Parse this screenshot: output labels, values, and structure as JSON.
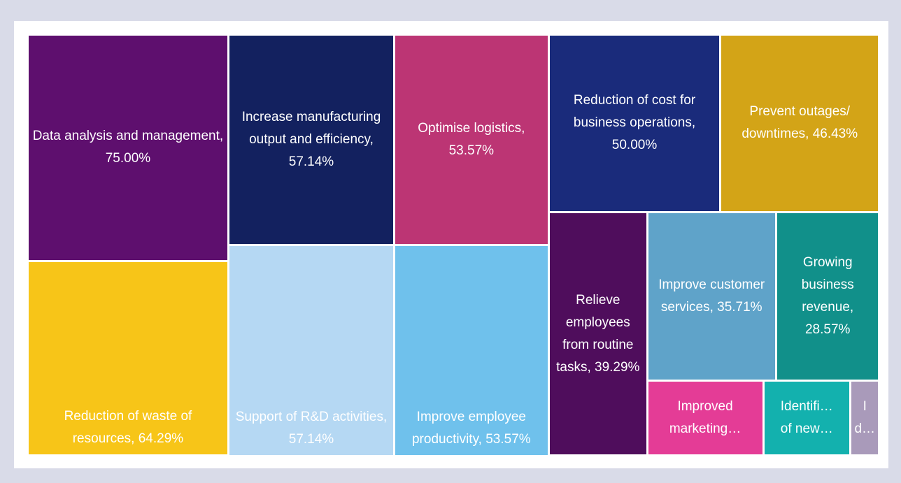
{
  "chart_data": {
    "type": "treemap",
    "labels": [
      "Data analysis and management, 75.00%",
      "Reduction of waste of resources, 64.29%",
      "Increase manufacturing output and efficiency, 57.14%",
      "Support of R&D activities, 57.14%",
      "Optimise logistics, 53.57%",
      "Improve employee productivity, 53.57%",
      "Reduction of cost for business operations, 50.00%",
      "Prevent outages/ downtimes, 46.43%",
      "Relieve employees from routine tasks, 39.29%",
      "Improve customer services, 35.71%",
      "Growing business revenue, 28.57%",
      "Improved marketing…",
      "Identifi…\nof new…",
      "I\nd…"
    ],
    "values": [
      75,
      64.29,
      57.14,
      57.14,
      53.57,
      53.57,
      50,
      46.43,
      39.29,
      35.71,
      28.57,
      14.29,
      10.71,
      3.57
    ],
    "colors": [
      "#5e0f6e",
      "#f7c518",
      "#13215f",
      "#b5d8f3",
      "#bc3574",
      "#6fc1ec",
      "#1a2b7b",
      "#d3a417",
      "#4f0d5c",
      "#5fa3c9",
      "#11908a",
      "#e43c96",
      "#13b1ae",
      "#a99aba"
    ]
  }
}
